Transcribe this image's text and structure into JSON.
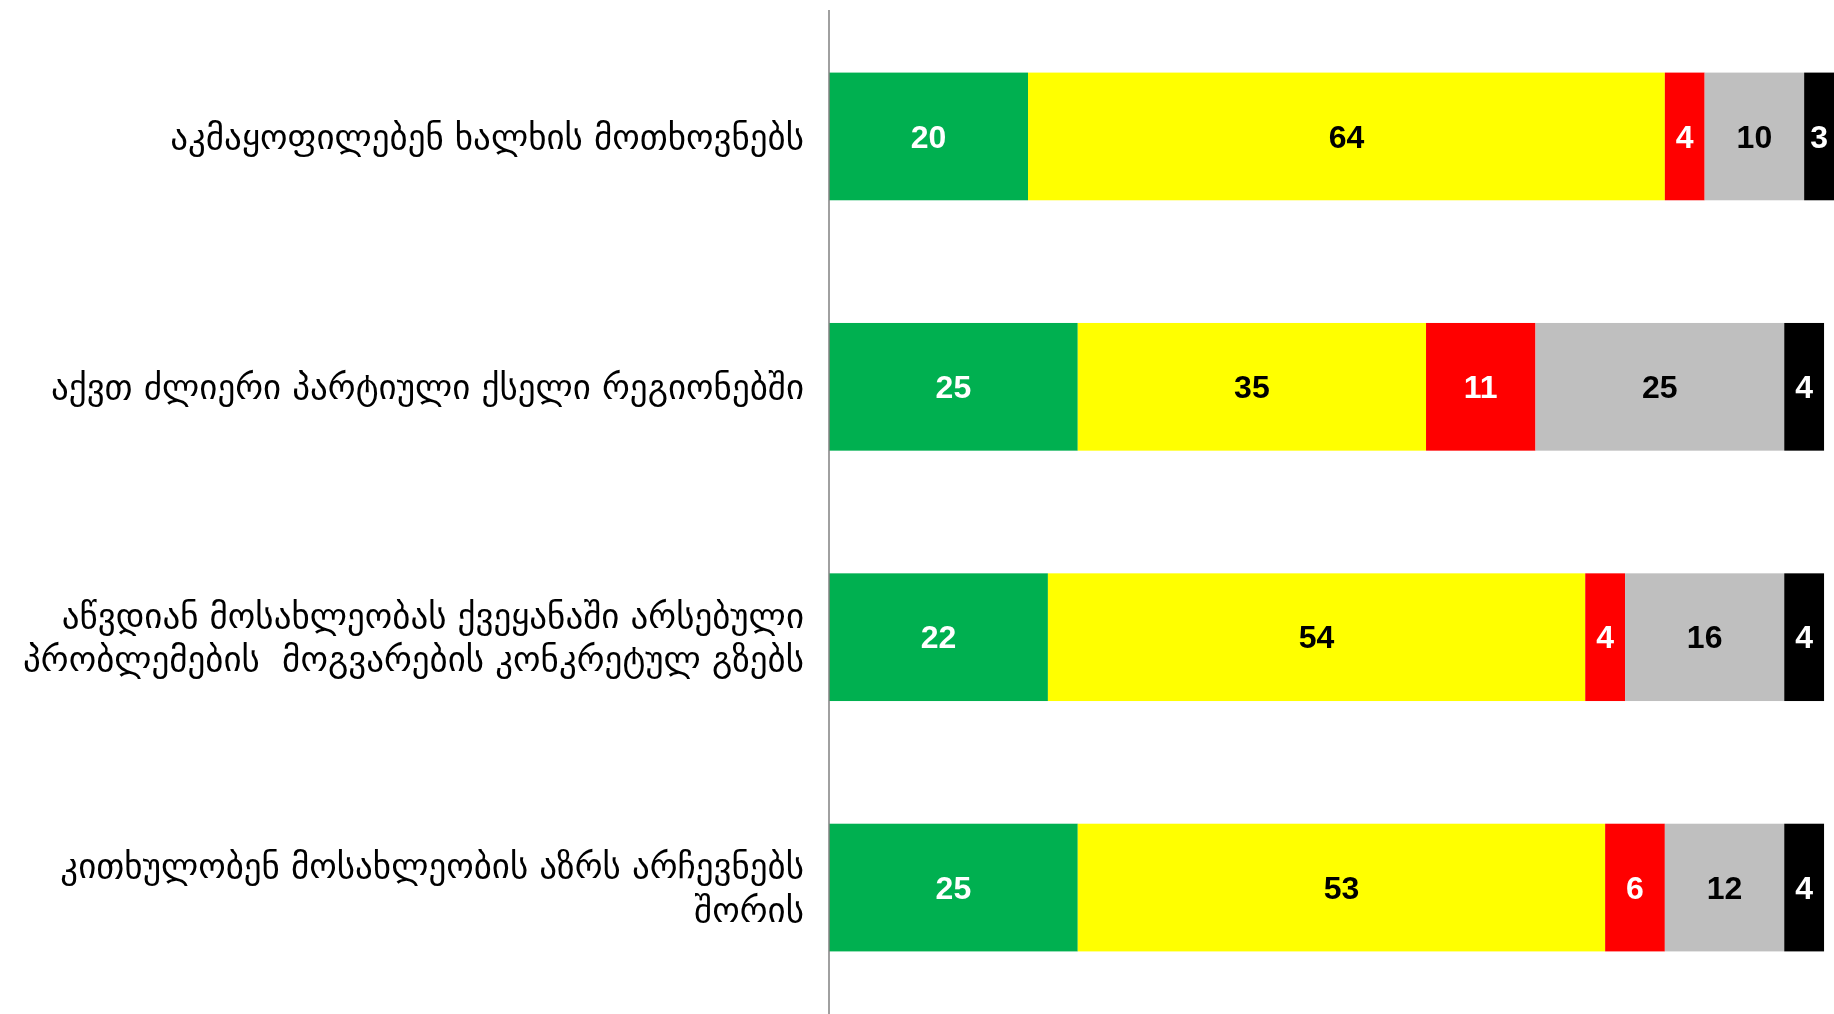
{
  "chart_data": {
    "type": "bar",
    "orientation": "horizontal",
    "stacked": true,
    "data_labels": true,
    "categories": [
      "აკმაყოფილებენ ხალხის მოთხოვნებს",
      "აქვთ ძლიერი პარტიული ქსელი რეგიონებში",
      "აწვდიან მოსახლეობას ქვეყანაში არსებული პრობლემების  მოგვარების კონკრეტულ გზებს",
      "კითხულობენ მოსახლეობის აზრს არჩევნებს შორის"
    ],
    "series": [
      {
        "color": "#00b050",
        "values": [
          20,
          25,
          22,
          25
        ]
      },
      {
        "color": "#ffff00",
        "values": [
          64,
          35,
          54,
          53
        ]
      },
      {
        "color": "#ff0000",
        "values": [
          4,
          11,
          4,
          6
        ]
      },
      {
        "color": "#bfbfbf",
        "values": [
          10,
          25,
          16,
          12
        ]
      },
      {
        "color": "#000000",
        "values": [
          3,
          4,
          4,
          4
        ]
      }
    ]
  }
}
